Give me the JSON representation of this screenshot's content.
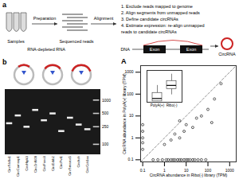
{
  "panel_a": {
    "label": "a",
    "samples": "Samples",
    "rna": "RNA-depleted RNA",
    "preparation": "Preparation",
    "reads": "Sequenced reads",
    "alignment": "Alignment",
    "steps": [
      "1. Exclude reads mapped to genome",
      "2. Align segments from unmapped reads",
      "3. Define candidate circRNAs",
      "4. Estimate expression: re-align unmapped",
      "reads to candidate circRNAs"
    ],
    "exon": "Exon",
    "dna": "DNA",
    "circrna": "CircRNA"
  },
  "panel_b": {
    "label": "b",
    "ladder": [
      1000,
      500,
      250,
      100
    ],
    "lanes": [
      {
        "name": "CircSlc8a1",
        "band": 300
      },
      {
        "name": "CircCamsap1",
        "band": 450
      },
      {
        "name": "CircHipk3",
        "band": 250
      },
      {
        "name": "CircZnf609",
        "band": 600
      },
      {
        "name": "CircFoxo3",
        "band": 350
      },
      {
        "name": "CircErbb2",
        "band": 500
      },
      {
        "name": "CircPvt1",
        "band": 200
      },
      {
        "name": "CircSmarca5",
        "band": 400
      },
      {
        "name": "CircItch",
        "band": 280
      },
      {
        "name": "CircCdr1as",
        "band": 220
      }
    ]
  },
  "panel_A": {
    "label": "A"
  },
  "chart_data": {
    "type": "scatter",
    "x_label": "CircRNA abundance in Ribo(-) library (TPM)",
    "y_label": "CircRNA abundance in PolyA(+) library (TPM)",
    "log": true,
    "grid": false,
    "color": "#333333",
    "marker": "circle",
    "line_style": "dashed",
    "xlim": [
      0.08,
      2000
    ],
    "xticks": [
      0.1,
      1,
      10,
      100,
      1000
    ],
    "ylim": [
      0.08,
      2000
    ],
    "yticks": [
      0.1,
      1,
      10,
      100,
      1000
    ],
    "x": [
      0.3,
      0.5,
      0.8,
      1.2,
      1.5,
      2,
      2.5,
      3,
      4,
      5,
      6,
      8,
      10,
      12,
      15,
      20,
      25,
      35,
      50,
      80,
      0.1,
      0.1,
      0.1,
      0.1,
      0.1,
      1,
      2,
      3,
      5,
      8,
      10,
      20,
      30,
      50,
      100,
      200,
      5,
      150,
      400
    ],
    "values": [
      0.1,
      0.1,
      0.1,
      0.1,
      0.1,
      0.1,
      0.1,
      0.1,
      0.1,
      0.1,
      0.1,
      0.1,
      0.1,
      0.1,
      0.1,
      0.1,
      0.1,
      0.1,
      0.1,
      0.1,
      0.3,
      0.6,
      1,
      2,
      4,
      0.5,
      0.8,
      1.5,
      1,
      2,
      4,
      3,
      8,
      10,
      20,
      60,
      6,
      5,
      300
    ],
    "inset": {
      "type": "box",
      "categories": [
        "PolyA(+)",
        "Ribo(-)"
      ],
      "tick_labels": "x",
      "ylim": [
        0.08,
        200
      ],
      "boxes": [
        {
          "min": 0.1,
          "q1": 0.1,
          "median": 0.2,
          "q3": 0.8,
          "max": 5
        },
        {
          "min": 0.5,
          "q1": 2,
          "median": 5,
          "q3": 15,
          "max": 80
        }
      ]
    }
  }
}
